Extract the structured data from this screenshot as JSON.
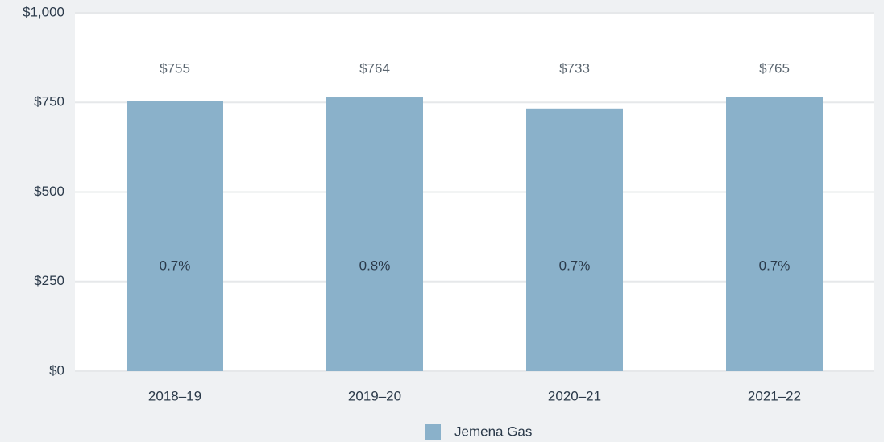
{
  "chart_data": {
    "type": "bar",
    "categories": [
      "2018–19",
      "2019–20",
      "2020–21",
      "2021–22"
    ],
    "series": [
      {
        "name": "Jemena Gas",
        "color": "#8ab1ca",
        "values": [
          755,
          764,
          733,
          765
        ],
        "value_labels": [
          "$755",
          "$764",
          "$733",
          "$765"
        ]
      }
    ],
    "bar_labels": [
      "0.7%",
      "0.8%",
      "0.7%",
      "0.7%"
    ],
    "ylim": [
      0,
      1000
    ],
    "yticks": [
      {
        "value": 0,
        "label": "$0"
      },
      {
        "value": 250,
        "label": "$250"
      },
      {
        "value": 500,
        "label": "$500"
      },
      {
        "value": 750,
        "label": "$750"
      },
      {
        "value": 1000,
        "label": "$1,000"
      }
    ],
    "grid": true,
    "legend": "bottom"
  }
}
